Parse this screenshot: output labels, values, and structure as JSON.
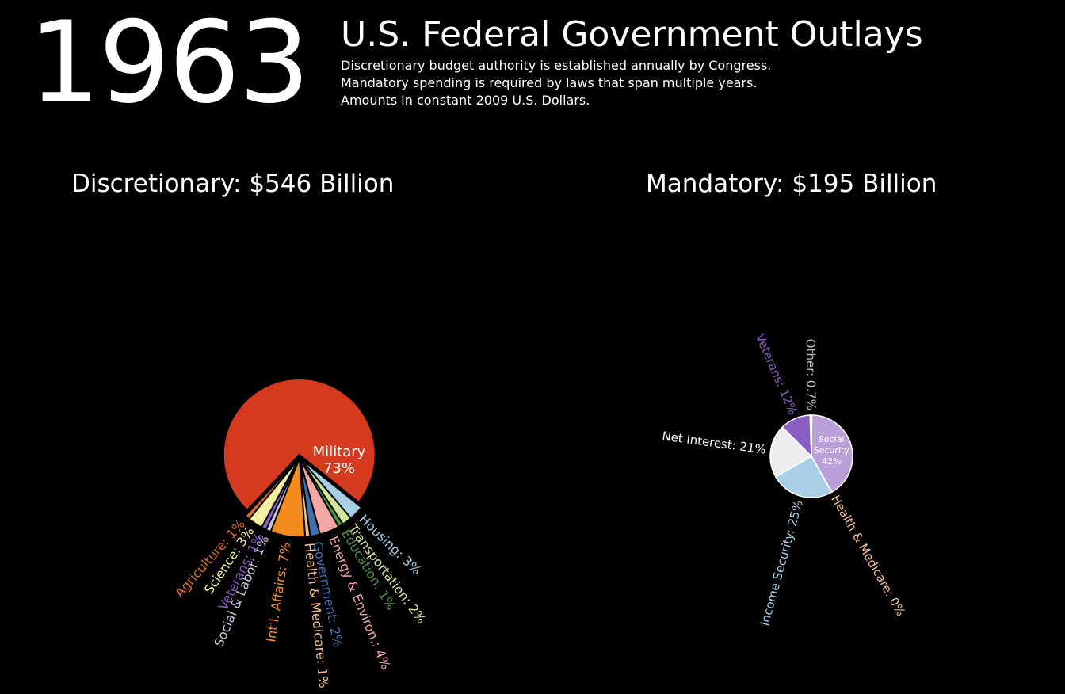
{
  "year": "1963",
  "title": "U.S. Federal Government Outlays",
  "subtitle_lines": [
    "Discretionary budget authority is established annually by Congress.",
    "Mandatory spending is required by laws that span multiple years.",
    "Amounts in constant 2009 U.S. Dollars."
  ],
  "chart_data": [
    {
      "type": "pie",
      "title": "Discretionary: $546 Billion",
      "slices": [
        {
          "label": "Military",
          "value": 73,
          "display": "Military\n73%",
          "color": "#d63a1e"
        },
        {
          "label": "Housing",
          "value": 3,
          "display": "Housing: 3%",
          "color": "#a9cfe6"
        },
        {
          "label": "Transportation",
          "value": 2,
          "display": "Transportation: 2%",
          "color": "#cfe89a"
        },
        {
          "label": "Education",
          "value": 1,
          "display": "Education: 1%",
          "color": "#4b9a3a"
        },
        {
          "label": "Energy & Environ.",
          "value": 4,
          "display": "Energy & Environ.: 4%",
          "color": "#f2a7a3"
        },
        {
          "label": "Government",
          "value": 2,
          "display": "Government: 2%",
          "color": "#3f6fae"
        },
        {
          "label": "Health & Medicare",
          "value": 1,
          "display": "Health & Medicare: 1%",
          "color": "#f7c08f"
        },
        {
          "label": "Int'l. Affairs",
          "value": 7,
          "display": "Int'l. Affairs: 7%",
          "color": "#f28a1c"
        },
        {
          "label": "Social & Labor",
          "value": 1,
          "display": "Social & Labor: 1%",
          "color": "#c9c9dc"
        },
        {
          "label": "Veterans",
          "value": 1,
          "display": "Veterans: 1%",
          "color": "#8a5fc4"
        },
        {
          "label": "Science",
          "value": 3,
          "display": "Science: 3%",
          "color": "#f5f0a0"
        },
        {
          "label": "Agriculture",
          "value": 1,
          "display": "Agriculture: 1%",
          "color": "#e06a2a"
        }
      ]
    },
    {
      "type": "pie",
      "title": "Mandatory: $195 Billion",
      "slices": [
        {
          "label": "Social Security",
          "value": 42,
          "display": "Social\nSecurity\n42%",
          "color": "#b9a0d8"
        },
        {
          "label": "Health & Medicare",
          "value": 0,
          "display": "Health & Medicare: 0%",
          "color": "#f7c08f"
        },
        {
          "label": "Income Security",
          "value": 25,
          "display": "Income Security: 25%",
          "color": "#a9cfe6"
        },
        {
          "label": "Net Interest",
          "value": 21,
          "display": "Net Interest: 21%",
          "color": "#eeeeee"
        },
        {
          "label": "Veterans",
          "value": 12,
          "display": "Veterans: 12%",
          "color": "#8a5fc4"
        },
        {
          "label": "Other",
          "value": 0.7,
          "display": "Other: 0.7%",
          "color": "#bbbbbb"
        }
      ]
    }
  ]
}
